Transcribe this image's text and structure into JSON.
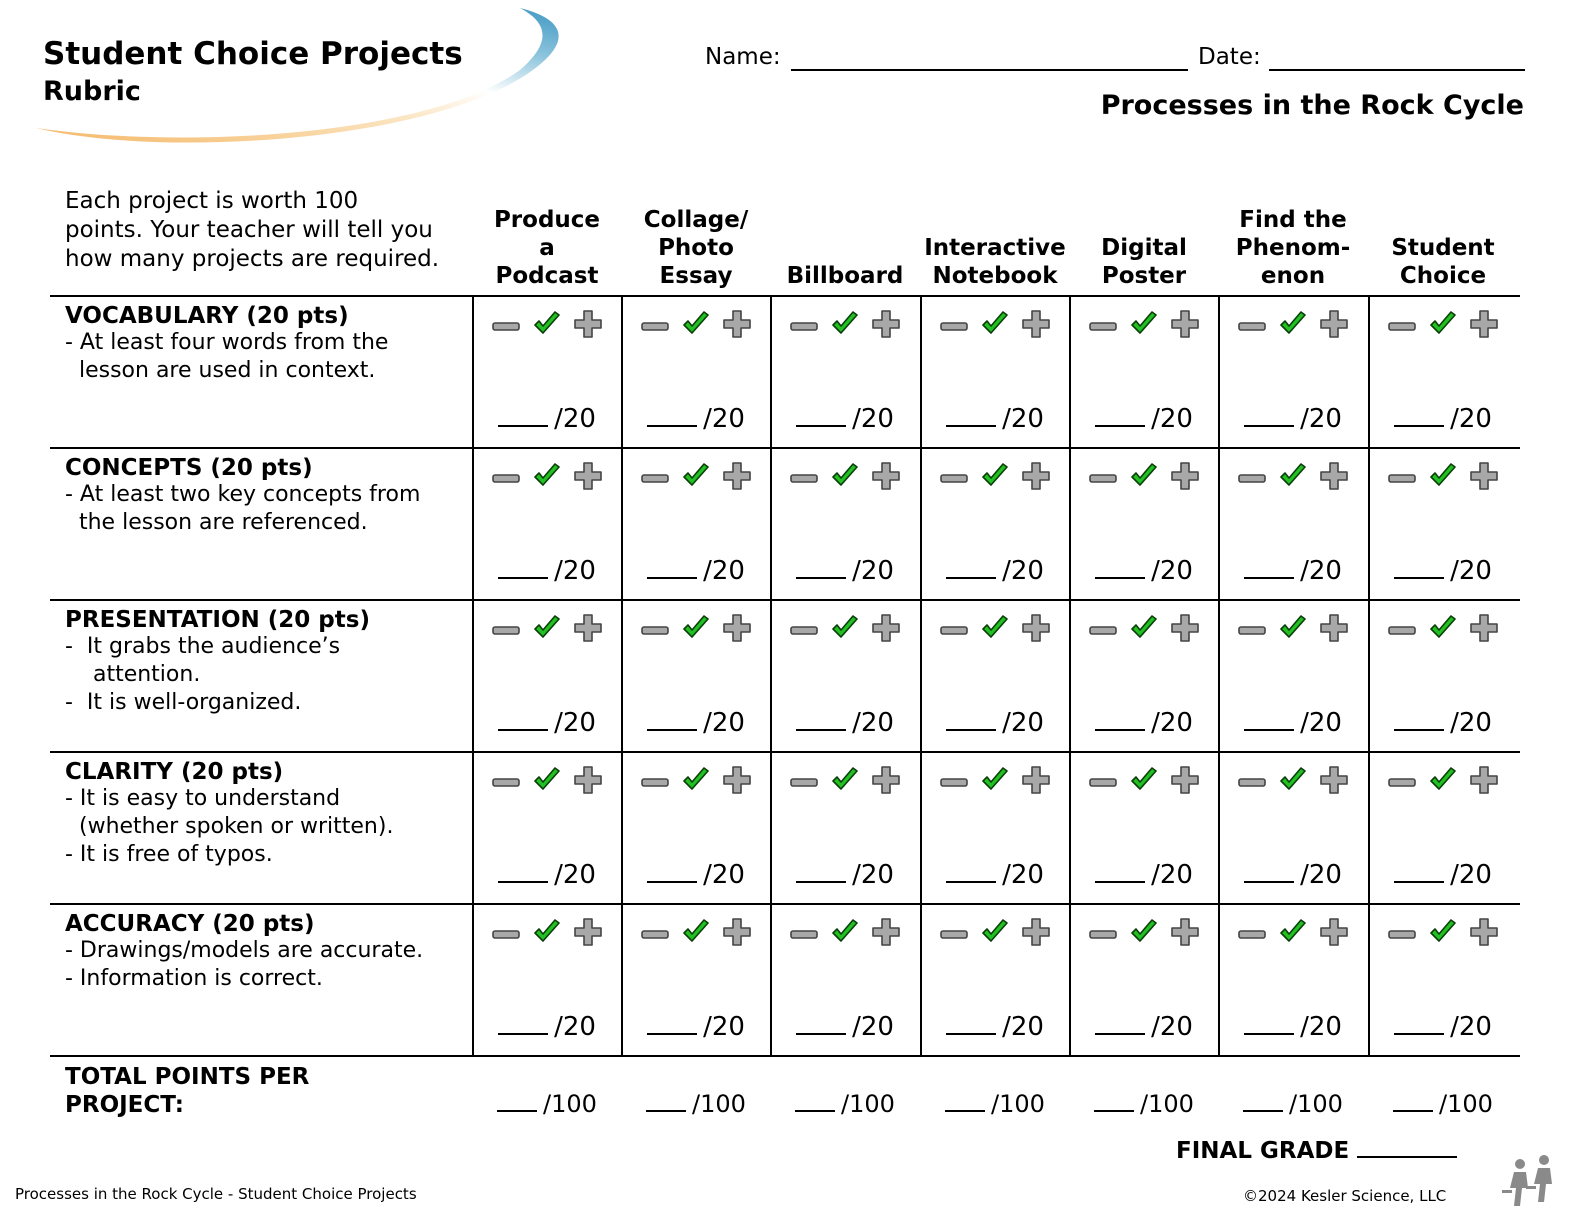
{
  "header": {
    "title": "Student Choice Projects",
    "subtitle": "Rubric",
    "name_label": "Name:",
    "date_label": "Date:",
    "topic": "Processes in the Rock Cycle"
  },
  "intro": [
    "Each project is worth 100",
    "points. Your teacher will tell you",
    "how many projects are required."
  ],
  "columns": [
    [
      "Produce",
      "a",
      "Podcast"
    ],
    [
      "Collage/",
      "Photo",
      "Essay"
    ],
    [
      "Billboard"
    ],
    [
      "Interactive",
      "Notebook"
    ],
    [
      "Digital",
      "Poster"
    ],
    [
      "Find the",
      "Phenom-",
      "enon"
    ],
    [
      "Student",
      "Choice"
    ]
  ],
  "criteria": [
    {
      "title": "VOCABULARY (20 pts)",
      "lines": [
        "- At least four words from the",
        "  lesson are used in context."
      ]
    },
    {
      "title": "CONCEPTS (20 pts)",
      "lines": [
        "- At least two key concepts from",
        "  the lesson are referenced."
      ]
    },
    {
      "title": "PRESENTATION (20 pts)",
      "lines": [
        "-  It grabs the audience’s",
        "    attention.",
        "-  It is well-organized."
      ]
    },
    {
      "title": "CLARITY (20 pts)",
      "lines": [
        "- It is easy to understand",
        "  (whether spoken or written).",
        "- It is free of typos."
      ]
    },
    {
      "title": "ACCURACY (20 pts)",
      "lines": [
        "- Drawings/models are accurate.",
        "- Information is correct."
      ]
    }
  ],
  "score_suffix": "/20",
  "total_label": [
    "TOTAL POINTS PER",
    "PROJECT:"
  ],
  "total_suffix": "/100",
  "final_grade_label": "FINAL GRADE",
  "footer": {
    "left": "Processes in the Rock Cycle - Student Choice Projects",
    "right": "©2024  Kesler Science, LLC"
  },
  "icons": [
    "minus-icon",
    "check-icon",
    "plus-icon"
  ],
  "colors": {
    "check": "#22c022",
    "icon_gray": "#a8a8a8"
  }
}
